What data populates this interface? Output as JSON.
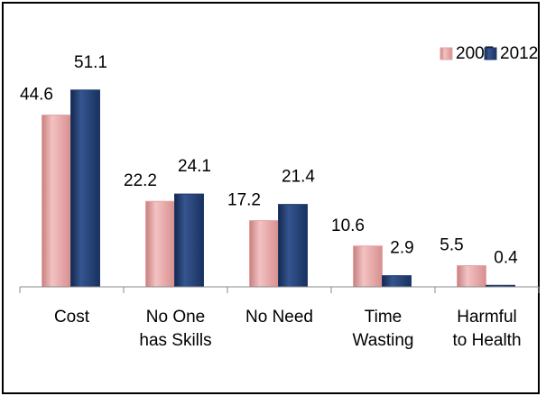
{
  "chart_data": {
    "type": "bar",
    "categories": [
      "Cost",
      "No One\nhas Skills",
      "No Need",
      "Time\nWasting",
      "Harmful\nto Health"
    ],
    "series": [
      {
        "name": "2007",
        "color": "#e6a3a3",
        "values": [
          44.6,
          22.2,
          17.2,
          10.6,
          5.5
        ]
      },
      {
        "name": "2012",
        "color": "#1f3a6b",
        "values": [
          51.1,
          24.1,
          21.4,
          2.9,
          0.4
        ]
      }
    ],
    "ylim": [
      0,
      60
    ],
    "legend": "upper right"
  }
}
